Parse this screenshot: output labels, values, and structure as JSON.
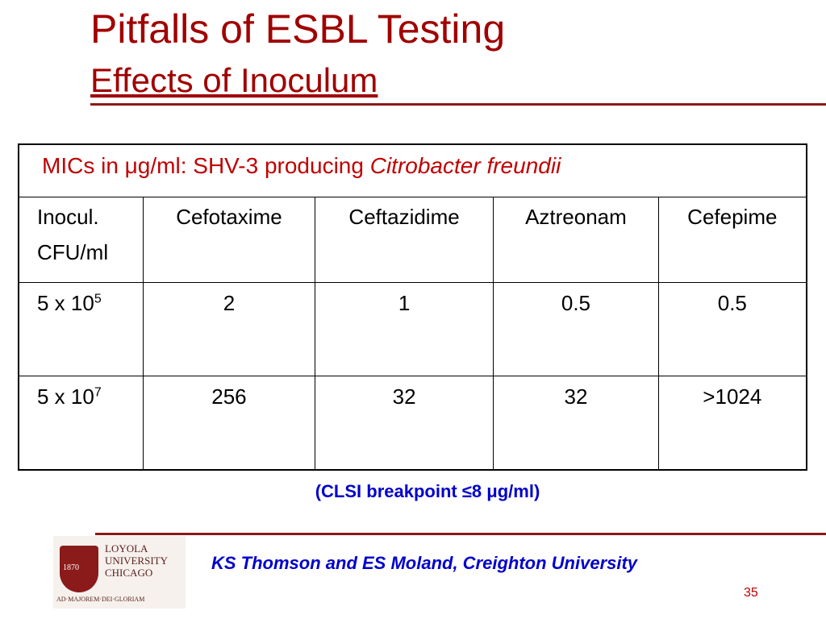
{
  "header": {
    "title": "Pitfalls of ESBL Testing",
    "subtitle": "Effects of Inoculum"
  },
  "table": {
    "caption": {
      "text": "MICs in μg/ml: SHV-3 producing ",
      "organism": "Citrobacter freundii"
    },
    "columns": [
      "Inocul. CFU/ml",
      "Cefotaxime",
      "Ceftazidime",
      "Aztreonam",
      "Cefepime"
    ],
    "rows": [
      {
        "label_base": "5 x 10",
        "label_exp": "5",
        "cells": [
          "2",
          "1",
          "0.5",
          "0.5"
        ]
      },
      {
        "label_base": "5 x 10",
        "label_exp": "7",
        "cells": [
          "256",
          "32",
          "32",
          ">1024"
        ]
      }
    ]
  },
  "note": "(CLSI breakpoint ≤8 μg/ml)",
  "logo": {
    "name": "LOYOLA\nUNIVERSITY\nCHICAGO",
    "year": "1870",
    "motto": "AD·MAJOREM·DEI·GLORIAM"
  },
  "footer": {
    "credit": "KS Thomson and ES Moland, Creighton University",
    "page": "35"
  }
}
